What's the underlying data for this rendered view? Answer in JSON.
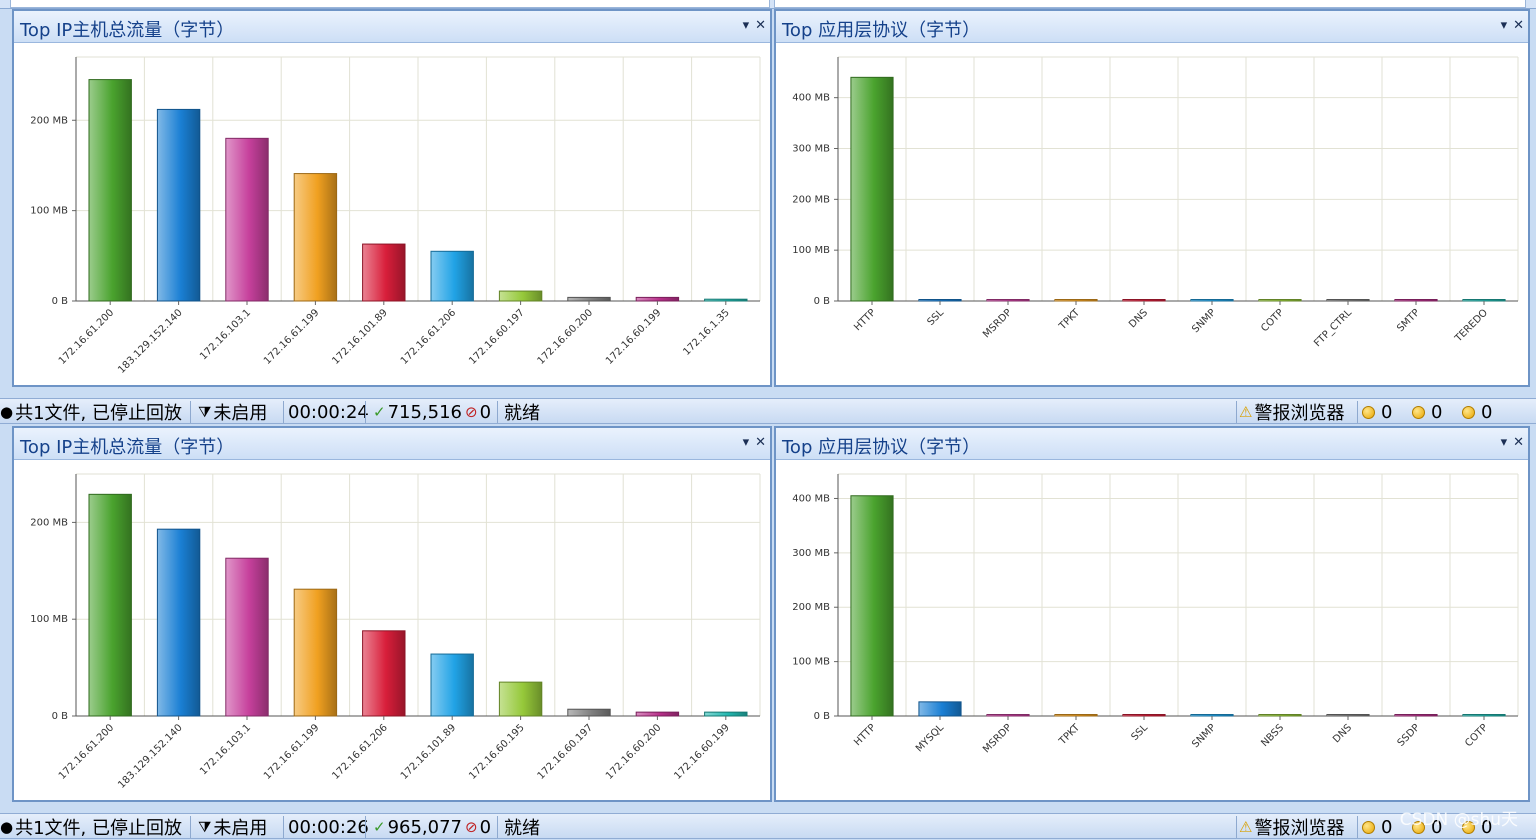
{
  "colors": {
    "bars": [
      "#4aa32e",
      "#1a7fd4",
      "#c6409c",
      "#f0a020",
      "#d81e3a",
      "#21a3e6",
      "#96c93a",
      "#808080",
      "#b8308a",
      "#22b8b0"
    ],
    "accent": "#15418a"
  },
  "blocks": [
    {
      "left_panel": {
        "title": "Top IP主机总流量（字节）",
        "chart_data": {
          "type": "bar",
          "categories": [
            "172.16.61.200",
            "183.129.152.140",
            "172.16.103.1",
            "172.16.61.199",
            "172.16.101.89",
            "172.16.61.206",
            "172.16.60.197",
            "172.16.60.200",
            "172.16.60.199",
            "172.16.1.35"
          ],
          "values": [
            245,
            212,
            180,
            141,
            63,
            55,
            11,
            4,
            4,
            2
          ],
          "yticks": [
            0,
            100,
            200
          ],
          "ytick_labels": [
            "0 B",
            "100 MB",
            "200 MB"
          ],
          "ylim": [
            0,
            270
          ],
          "unit": "MB"
        }
      },
      "right_panel": {
        "title": "Top 应用层协议（字节）",
        "chart_data": {
          "type": "bar",
          "categories": [
            "HTTP",
            "SSL",
            "MSRDP",
            "TPKT",
            "DNS",
            "SNMP",
            "COTP",
            "FTP_CTRL",
            "SMTP",
            "TEREDO"
          ],
          "values": [
            440,
            1.5,
            1,
            1,
            0.2,
            0.1,
            0.1,
            0.1,
            0.1,
            0.1
          ],
          "yticks": [
            0,
            100,
            200,
            300,
            400
          ],
          "ytick_labels": [
            "0 B",
            "100 MB",
            "200 MB",
            "300 MB",
            "400 MB"
          ],
          "ylim": [
            0,
            480
          ],
          "unit": "MB"
        }
      },
      "status": {
        "files": "共1文件, 已停止回放",
        "filter": "未启用",
        "time": "00:00:24",
        "packets": "715,516",
        "drops": "0",
        "ready": "就绪",
        "alert_label": "警报浏览器",
        "counts": [
          "0",
          "0",
          "0"
        ]
      }
    },
    {
      "left_panel": {
        "title": "Top IP主机总流量（字节）",
        "chart_data": {
          "type": "bar",
          "categories": [
            "172.16.61.200",
            "183.129.152.140",
            "172.16.103.1",
            "172.16.61.199",
            "172.16.61.206",
            "172.16.101.89",
            "172.16.60.195",
            "172.16.60.197",
            "172.16.60.200",
            "172.16.60.199"
          ],
          "values": [
            229,
            193,
            163,
            131,
            88,
            64,
            35,
            7,
            4,
            4
          ],
          "yticks": [
            0,
            100,
            200
          ],
          "ytick_labels": [
            "0 B",
            "100 MB",
            "200 MB"
          ],
          "ylim": [
            0,
            250
          ],
          "unit": "MB"
        }
      },
      "right_panel": {
        "title": "Top 应用层协议（字节）",
        "chart_data": {
          "type": "bar",
          "categories": [
            "HTTP",
            "MYSQL",
            "MSRDP",
            "TPKT",
            "SSL",
            "SNMP",
            "NBSS",
            "DNS",
            "SSDP",
            "COTP"
          ],
          "values": [
            405,
            26,
            1.5,
            1,
            0.5,
            0.2,
            0.2,
            0.1,
            0.1,
            0.1
          ],
          "yticks": [
            0,
            100,
            200,
            300,
            400
          ],
          "ytick_labels": [
            "0 B",
            "100 MB",
            "200 MB",
            "300 MB",
            "400 MB"
          ],
          "ylim": [
            0,
            445
          ],
          "unit": "MB"
        }
      },
      "status": {
        "files": "共1文件, 已停止回放",
        "filter": "未启用",
        "time": "00:00:26",
        "packets": "965,077",
        "drops": "0",
        "ready": "就绪",
        "alert_label": "警报浏览器",
        "counts": [
          "0",
          "0",
          "0"
        ]
      }
    }
  ],
  "watermark": "CSDN @shu天"
}
